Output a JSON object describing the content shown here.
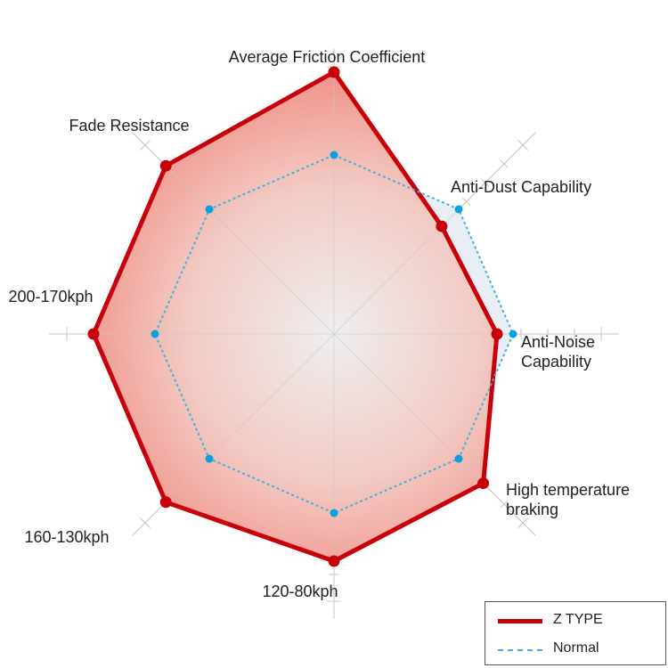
{
  "chart_data": {
    "type": "radar",
    "axes": [
      "Average Friction Coefficient",
      "Anti-Dust Capability",
      "Anti-Noise Capability",
      "High temperature braking",
      "120-80kph",
      "160-130kph",
      "200-170kph",
      "Fade Resistance"
    ],
    "axis_label_lines": [
      [
        "Average Friction Coefficient"
      ],
      [
        "Anti-Dust Capability"
      ],
      [
        "Anti-Noise",
        "Capability"
      ],
      [
        "High temperature",
        "braking"
      ],
      [
        "120-80kph"
      ],
      [
        "160-130kph"
      ],
      [
        "200-170kph"
      ],
      [
        "Fade Resistance"
      ]
    ],
    "range": [
      0,
      10
    ],
    "ticks_per_axis": 10,
    "grid": true,
    "series": [
      {
        "name": "Z TYPE",
        "values": [
          9.8,
          5.7,
          6.1,
          7.9,
          8.5,
          8.9,
          9.0,
          8.9
        ],
        "color": "#c8000a",
        "style": "solid",
        "fill": "#f08a7e"
      },
      {
        "name": "Normal",
        "values": [
          6.7,
          6.6,
          6.7,
          6.6,
          6.7,
          6.6,
          6.7,
          6.6
        ],
        "color": "#3fb4d8",
        "point_color": "#0ba0e0",
        "style": "dashed",
        "fill": "#e9eef4"
      }
    ],
    "legend": {
      "position": "bottom-right"
    }
  }
}
